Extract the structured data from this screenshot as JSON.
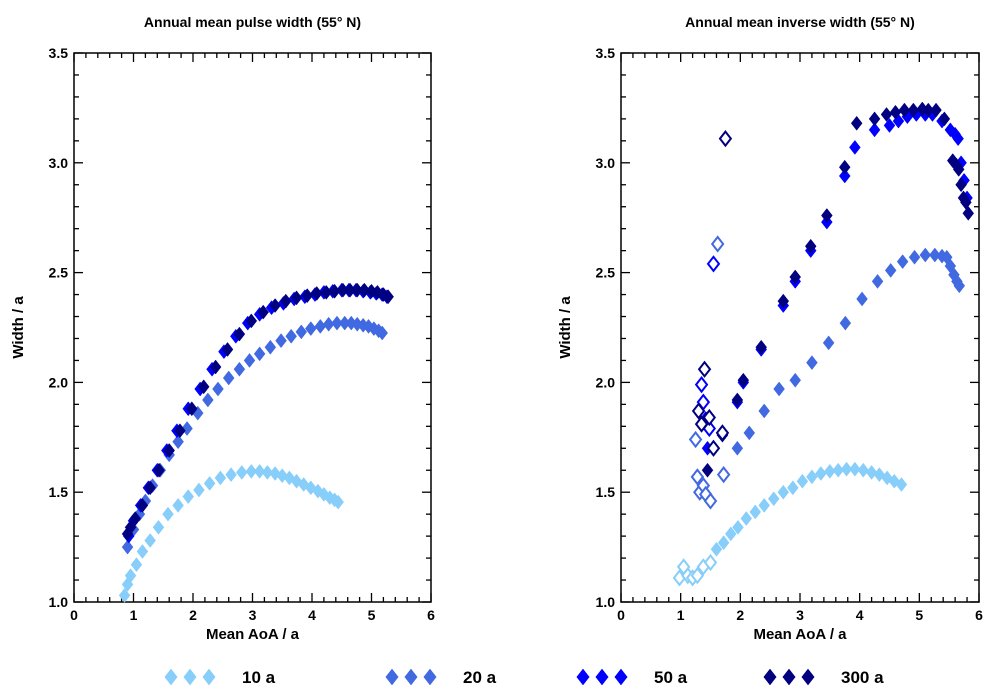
{
  "chart_data": [
    {
      "type": "scatter",
      "title": "Annual mean pulse width (55° N)",
      "xlabel": "Mean AoA / a",
      "ylabel": "Width / a",
      "xlim": [
        0,
        6
      ],
      "ylim": [
        1.0,
        3.5
      ],
      "xticks": [
        "0",
        "1",
        "2",
        "3",
        "4",
        "5",
        "6"
      ],
      "yticks": [
        "1.0",
        "1.5",
        "2.0",
        "2.5",
        "3.0",
        "3.5"
      ],
      "grid": false,
      "series": [
        {
          "name": "10 a",
          "color": "#87CEFA",
          "marker": "filled-diamond",
          "x": [
            0.85,
            0.9,
            0.95,
            1.05,
            1.15,
            1.28,
            1.42,
            1.58,
            1.75,
            1.92,
            2.1,
            2.28,
            2.46,
            2.64,
            2.82,
            2.98,
            3.12,
            3.25,
            3.38,
            3.5,
            3.62,
            3.74,
            3.86,
            3.98,
            4.1,
            4.2,
            4.3,
            4.38,
            4.44
          ],
          "y": [
            1.03,
            1.08,
            1.12,
            1.17,
            1.23,
            1.28,
            1.34,
            1.4,
            1.44,
            1.48,
            1.51,
            1.54,
            1.565,
            1.58,
            1.59,
            1.595,
            1.595,
            1.59,
            1.585,
            1.575,
            1.565,
            1.55,
            1.535,
            1.52,
            1.505,
            1.49,
            1.475,
            1.465,
            1.455
          ]
        },
        {
          "name": "20 a",
          "color": "#4169E1",
          "marker": "filled-diamond",
          "x": [
            0.9,
            1.0,
            1.1,
            1.2,
            1.32,
            1.45,
            1.6,
            1.75,
            1.9,
            2.08,
            2.25,
            2.42,
            2.6,
            2.78,
            2.95,
            3.12,
            3.3,
            3.48,
            3.65,
            3.82,
            3.98,
            4.14,
            4.28,
            4.42,
            4.55,
            4.66,
            4.76,
            4.86,
            4.95,
            5.04,
            5.12,
            5.18
          ],
          "y": [
            1.25,
            1.33,
            1.4,
            1.46,
            1.53,
            1.6,
            1.67,
            1.73,
            1.79,
            1.86,
            1.92,
            1.97,
            2.02,
            2.06,
            2.1,
            2.13,
            2.16,
            2.19,
            2.21,
            2.23,
            2.245,
            2.255,
            2.265,
            2.27,
            2.27,
            2.27,
            2.265,
            2.26,
            2.255,
            2.245,
            2.235,
            2.225
          ]
        },
        {
          "name": "50 a",
          "color": "#0000FF",
          "marker": "filled-diamond",
          "x": [
            0.92,
            1.0,
            1.12,
            1.25,
            1.4,
            1.56,
            1.73,
            1.92,
            2.12,
            2.32,
            2.52,
            2.72,
            2.92,
            3.12,
            3.32,
            3.52,
            3.7,
            3.88,
            4.05,
            4.2,
            4.35,
            4.5,
            4.62,
            4.74,
            4.86,
            4.98,
            5.08,
            5.18,
            5.26
          ],
          "y": [
            1.3,
            1.37,
            1.44,
            1.52,
            1.6,
            1.69,
            1.78,
            1.88,
            1.97,
            2.06,
            2.14,
            2.21,
            2.27,
            2.31,
            2.34,
            2.36,
            2.38,
            2.39,
            2.4,
            2.41,
            2.415,
            2.42,
            2.42,
            2.42,
            2.415,
            2.41,
            2.405,
            2.4,
            2.39
          ]
        },
        {
          "name": "300 a",
          "color": "#000080",
          "marker": "filled-diamond",
          "x": [
            0.9,
            0.95,
            1.03,
            1.15,
            1.28,
            1.43,
            1.6,
            1.78,
            1.98,
            2.18,
            2.38,
            2.58,
            2.78,
            2.98,
            3.18,
            3.38,
            3.56,
            3.74,
            3.92,
            4.08,
            4.24,
            4.38,
            4.52,
            4.64,
            4.76,
            4.88,
            5.0,
            5.1,
            5.2,
            5.28
          ],
          "y": [
            1.31,
            1.34,
            1.38,
            1.44,
            1.52,
            1.6,
            1.69,
            1.78,
            1.88,
            1.98,
            2.07,
            2.15,
            2.22,
            2.28,
            2.32,
            2.35,
            2.37,
            2.385,
            2.395,
            2.405,
            2.41,
            2.415,
            2.42,
            2.42,
            2.42,
            2.42,
            2.415,
            2.41,
            2.4,
            2.39
          ]
        }
      ]
    },
    {
      "type": "scatter",
      "title": "Annual mean inverse width (55° N)",
      "xlabel": "Mean AoA / a",
      "ylabel": "Width / a",
      "xlim": [
        0,
        6
      ],
      "ylim": [
        1.0,
        3.5
      ],
      "xticks": [
        "0",
        "1",
        "2",
        "3",
        "4",
        "5",
        "6"
      ],
      "yticks": [
        "1.0",
        "1.5",
        "2.0",
        "2.5",
        "3.0",
        "3.5"
      ],
      "grid": false,
      "series": [
        {
          "name": "10 a",
          "color": "#87CEFA",
          "marker": "filled-diamond",
          "x": [
            1.6,
            1.72,
            1.84,
            1.96,
            2.1,
            2.25,
            2.4,
            2.56,
            2.72,
            2.88,
            3.04,
            3.2,
            3.35,
            3.5,
            3.64,
            3.78,
            3.92,
            4.06,
            4.2,
            4.33,
            4.46,
            4.58,
            4.7
          ],
          "y": [
            1.24,
            1.27,
            1.31,
            1.34,
            1.38,
            1.41,
            1.44,
            1.47,
            1.5,
            1.52,
            1.55,
            1.57,
            1.585,
            1.595,
            1.6,
            1.605,
            1.605,
            1.6,
            1.59,
            1.58,
            1.565,
            1.55,
            1.535
          ]
        },
        {
          "name": "20 a",
          "color": "#4169E1",
          "marker": "filled-diamond",
          "x": [
            1.95,
            2.15,
            2.4,
            2.65,
            2.92,
            3.2,
            3.48,
            3.76,
            4.04,
            4.3,
            4.52,
            4.72,
            4.92,
            5.1,
            5.26,
            5.38,
            5.46,
            5.52,
            5.58,
            5.63,
            5.67
          ],
          "y": [
            1.7,
            1.77,
            1.87,
            1.97,
            2.01,
            2.09,
            2.18,
            2.27,
            2.38,
            2.46,
            2.51,
            2.55,
            2.57,
            2.58,
            2.58,
            2.575,
            2.57,
            2.53,
            2.49,
            2.46,
            2.44
          ]
        },
        {
          "name": "50 a",
          "color": "#0000FF",
          "marker": "filled-diamond",
          "x": [
            1.45,
            1.7,
            1.95,
            2.05,
            2.35,
            2.72,
            2.92,
            3.18,
            3.45,
            3.75,
            3.92,
            4.25,
            4.5,
            4.65,
            4.8,
            4.95,
            5.1,
            5.22,
            5.38,
            5.52,
            5.6,
            5.65,
            5.7,
            5.75,
            5.8
          ],
          "y": [
            1.7,
            1.76,
            1.91,
            2.0,
            2.15,
            2.35,
            2.46,
            2.6,
            2.73,
            2.94,
            3.07,
            3.15,
            3.17,
            3.19,
            3.21,
            3.22,
            3.22,
            3.22,
            3.19,
            3.15,
            3.13,
            3.11,
            3.0,
            2.92,
            2.84
          ]
        },
        {
          "name": "300 a",
          "color": "#000080",
          "marker": "filled-diamond",
          "x": [
            1.45,
            1.7,
            1.95,
            2.05,
            2.35,
            2.72,
            2.92,
            3.18,
            3.45,
            3.75,
            3.95,
            4.25,
            4.45,
            4.6,
            4.75,
            4.9,
            5.05,
            5.15,
            5.28,
            5.42,
            5.56,
            5.62,
            5.66,
            5.7,
            5.74,
            5.78,
            5.82
          ],
          "y": [
            1.6,
            1.76,
            1.92,
            2.01,
            2.16,
            2.37,
            2.48,
            2.62,
            2.76,
            2.98,
            3.18,
            3.2,
            3.22,
            3.23,
            3.24,
            3.24,
            3.245,
            3.24,
            3.24,
            3.2,
            3.01,
            2.99,
            2.97,
            2.9,
            2.84,
            2.82,
            2.77
          ]
        },
        {
          "name": "10 a (open)",
          "color": "#87CEFA",
          "marker": "open-diamond",
          "x": [
            0.98,
            1.05,
            1.12,
            1.2,
            1.28,
            1.38,
            1.5
          ],
          "y": [
            1.11,
            1.16,
            1.12,
            1.11,
            1.12,
            1.16,
            1.18
          ]
        },
        {
          "name": "20 a (open)",
          "color": "#4169E1",
          "marker": "open-diamond",
          "x": [
            1.25,
            1.28,
            1.32,
            1.38,
            1.42,
            1.5,
            1.72
          ],
          "y": [
            1.74,
            1.57,
            1.5,
            1.53,
            1.49,
            1.46,
            1.58
          ]
        },
        {
          "name": "50 a (open)",
          "color": "#0000FF",
          "marker": "open-diamond",
          "x": [
            1.35,
            1.38,
            1.42,
            1.48,
            1.55
          ],
          "y": [
            1.99,
            1.91,
            1.83,
            1.79,
            2.54
          ]
        },
        {
          "name": "300 a (open)",
          "color": "#000080",
          "marker": "open-diamond",
          "x": [
            1.3,
            1.35,
            1.4,
            1.48,
            1.55,
            1.7,
            1.75
          ],
          "y": [
            1.87,
            1.81,
            2.06,
            1.84,
            1.7,
            1.77,
            3.11
          ]
        },
        {
          "name": "20 a (open, high)",
          "color": "#4169E1",
          "marker": "open-diamond",
          "x": [
            1.62
          ],
          "y": [
            2.63
          ]
        }
      ]
    }
  ],
  "legend": {
    "placement": "bottom",
    "items": [
      {
        "label": "10 a",
        "color": "#87CEFA"
      },
      {
        "label": "20 a",
        "color": "#4169E1"
      },
      {
        "label": "50 a",
        "color": "#0000FF"
      },
      {
        "label": "300 a",
        "color": "#000080"
      }
    ]
  }
}
